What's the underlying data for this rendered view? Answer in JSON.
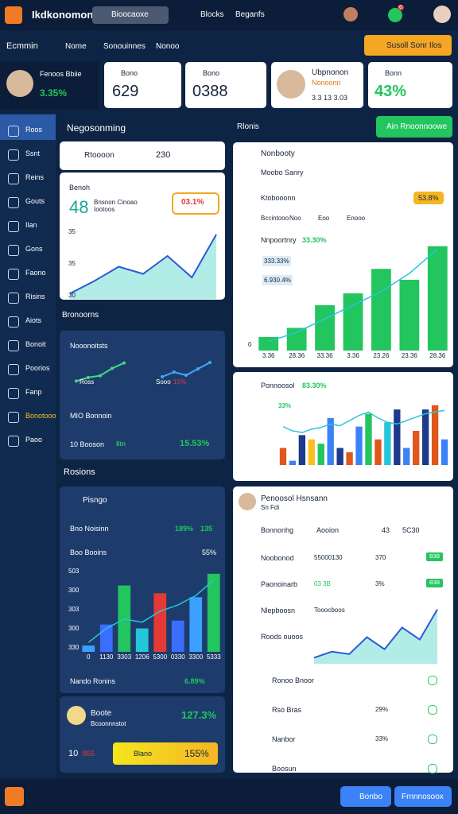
{
  "header": {
    "title": "Ikdkonomonn",
    "search": "Bioocaoxe",
    "links": [
      "Blocks",
      "Beganfs"
    ],
    "badge": "6"
  },
  "toolbar": {
    "title": "Ecmmin",
    "tabs": [
      "Nome",
      "Sonouinnes",
      "Nonoo"
    ],
    "button": "Susoll Sonr Ilos"
  },
  "stats": [
    {
      "name": "Fenoos Bbiie",
      "value": "3.35%"
    },
    {
      "label": "Bono",
      "value": "629"
    },
    {
      "label": "Bono",
      "value": "0388"
    },
    {
      "name": "Ubpnonon",
      "sub": "Nonoonn",
      "value": "3.3 13 3.03"
    },
    {
      "label": "Bonn",
      "value": "43%"
    }
  ],
  "sidebar": [
    "Roos",
    "Ssnt",
    "Reins",
    "Gouts",
    "Ilan",
    "Gons",
    "Faono",
    "Risins",
    "Aiots",
    "Bonoit",
    "Poorios",
    "Fanp",
    "Bonotooo",
    "Paoo"
  ],
  "left": {
    "section": "Negosonming",
    "card1": {
      "title": "Rtoooon",
      "value": "230",
      "label": "Benoh",
      "big": "48",
      "desc": "Bnsnon Cinoao Iootoos",
      "badge": "03.1%",
      "yticks": [
        "35",
        "35",
        "30"
      ],
      "chart": {
        "type": "area",
        "values": [
          3,
          10,
          18,
          14,
          24,
          12,
          36
        ],
        "ylim": [
          0,
          40
        ],
        "color": "#2c5ad6"
      }
    },
    "card2": {
      "title": "Bronoorns",
      "sub": "Nooonoitsts",
      "legend": [
        "Ross",
        "Sooo"
      ],
      "badge": "15%",
      "row": "MIO Bonnoin",
      "foot": "10 Booson",
      "foot_tag": "8tn",
      "foot_value": "15.53%",
      "lineA": {
        "type": "line",
        "values": [
          2,
          4,
          5,
          9,
          12
        ],
        "ylim": [
          0,
          14
        ],
        "color": "#3ddc84"
      },
      "lineB": {
        "type": "line",
        "values": [
          5,
          8,
          6,
          10,
          14
        ],
        "ylim": [
          0,
          16
        ],
        "color": "#40a9ff"
      }
    },
    "section2": "Rosions",
    "card3": {
      "title": "Pisngo",
      "row1": "Bno Noisinn",
      "row1_a": "189%",
      "row1_b": "135",
      "row2": "Boo Booins",
      "row2_v": "55%",
      "yticks": [
        "503",
        "300",
        "303",
        "300",
        "330"
      ],
      "chart": {
        "type": "bar",
        "values": [
          8,
          35,
          85,
          30,
          75,
          40,
          70,
          100
        ],
        "colors": [
          "#3ba0ff",
          "#3b6dff",
          "#22c55e",
          "#26c6da",
          "#e53935",
          "#3b6dff",
          "#3ba0ff",
          "#22c55e"
        ],
        "line": [
          12,
          30,
          42,
          38,
          52,
          60,
          72,
          92
        ],
        "ylim": [
          0,
          110
        ],
        "categories": [
          "0",
          "1130",
          "3303",
          "1206",
          "5300",
          "0330",
          "3300",
          "5333"
        ]
      },
      "foot": "Nando Ronins",
      "foot_value": "6.89%"
    },
    "card4": {
      "title": "Boote",
      "sub": "Bcoonnnstot",
      "value": "127.3%",
      "num": "10",
      "num_tag": "855",
      "bar_label": "Blano",
      "bar_value": "155%"
    }
  },
  "right": {
    "section": "Rlonis",
    "button": "Ain Rnoonnoowe",
    "card1": {
      "title": "Nonbooty",
      "sub": "Moobo Sanry",
      "row": "Ktobooonn",
      "row_v": "53.8%",
      "tabs": [
        "Bccintooo",
        "Noo",
        "Eoo",
        "Enooo"
      ],
      "head": "Nnpoortnry",
      "head_v": "33.30%",
      "tags": [
        "333.33%",
        "6.930.4%"
      ],
      "yticks": [
        "0"
      ],
      "chart": {
        "type": "bar",
        "values": [
          15,
          25,
          50,
          63,
          90,
          78,
          115
        ],
        "color": "#22c55e",
        "line": [
          10,
          20,
          35,
          50,
          65,
          85,
          112
        ],
        "ylim": [
          0,
          120
        ],
        "categories": [
          "3.36",
          "28.36",
          "33.36",
          "3.36",
          "23.26",
          "23.36",
          "28.36"
        ]
      }
    },
    "card2": {
      "title": "Ponnoosol",
      "title_v": "83.30%",
      "tag": "33%",
      "chart": {
        "type": "bar",
        "values": [
          20,
          5,
          35,
          30,
          25,
          55,
          20,
          15,
          45,
          60,
          30,
          50,
          65,
          20,
          40,
          65,
          70,
          30
        ],
        "colors": [
          "#e0571c",
          "#3b82f6",
          "#1e3a8a",
          "#fbbf24",
          "#22c55e",
          "#3b82f6",
          "#1e3a8a",
          "#e0571c",
          "#3b82f6",
          "#22c55e",
          "#e0571c",
          "#26c6da",
          "#1e3a8a",
          "#3b82f6",
          "#e0571c",
          "#1e3a8a",
          "#e0571c",
          "#3b82f6"
        ],
        "line": [
          45,
          40,
          38,
          42,
          44,
          48,
          46,
          52,
          58,
          62,
          55,
          50,
          48,
          52,
          56,
          60,
          62,
          64
        ],
        "ylim": [
          0,
          80
        ]
      }
    },
    "card3": {
      "title": "Penoosol Hsnsann",
      "sub": "Sn Fdi",
      "filter": "Bonnonhg",
      "filter_b": "Aooion",
      "filter_c": "43",
      "filter_d": "5C30",
      "rows": [
        {
          "name": "Noobonod",
          "value": "55000130",
          "pct": "370",
          "tag": "B3B"
        },
        {
          "name": "Paonoinarb",
          "value": "03 3B",
          "pct": "3%",
          "tag": "B3B"
        },
        {
          "name": "Nlepboosn",
          "value": "Tooocboos",
          "pct": "",
          "tag": ""
        },
        {
          "name": "Roods ouoos",
          "value": "",
          "pct": "",
          "tag": ""
        }
      ],
      "chart": {
        "type": "area",
        "values": [
          5,
          10,
          8,
          22,
          12,
          30,
          20,
          45
        ],
        "ylim": [
          0,
          50
        ],
        "color": "#2c5ad6"
      },
      "list": [
        {
          "name": "Ronoo Bnoor",
          "pct": ""
        },
        {
          "name": "Rso Bras",
          "pct": "29%"
        },
        {
          "name": "Nanbor",
          "pct": "33%"
        },
        {
          "name": "Boosun",
          "pct": ""
        }
      ]
    }
  },
  "bottom": {
    "buttons": [
      "Bonbo",
      "Frnnnosoox"
    ]
  }
}
